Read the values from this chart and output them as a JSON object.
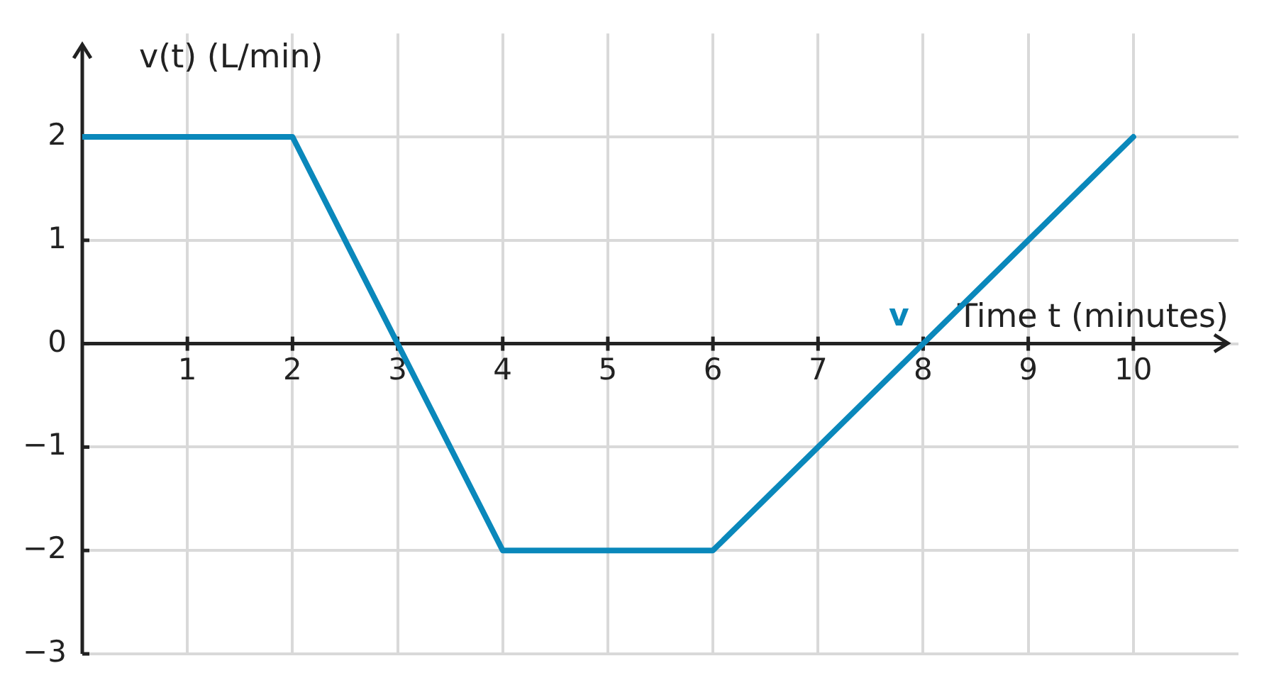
{
  "chart_data": {
    "type": "line",
    "xlabel": "Time t (minutes)",
    "ylabel": "v(t) (L/min)",
    "x": [
      0,
      2,
      4,
      6,
      10
    ],
    "series": [
      {
        "name": "v",
        "color": "#0a88bb",
        "values": [
          2,
          2,
          -2,
          -2,
          2
        ]
      }
    ],
    "xlim": [
      0,
      11
    ],
    "ylim": [
      -3,
      3
    ],
    "xticks": [
      1,
      2,
      3,
      4,
      5,
      6,
      7,
      8,
      9,
      10
    ],
    "yticks": [
      -3,
      -2,
      -1,
      0,
      1,
      2
    ],
    "grid": true,
    "line_style": "solid"
  }
}
